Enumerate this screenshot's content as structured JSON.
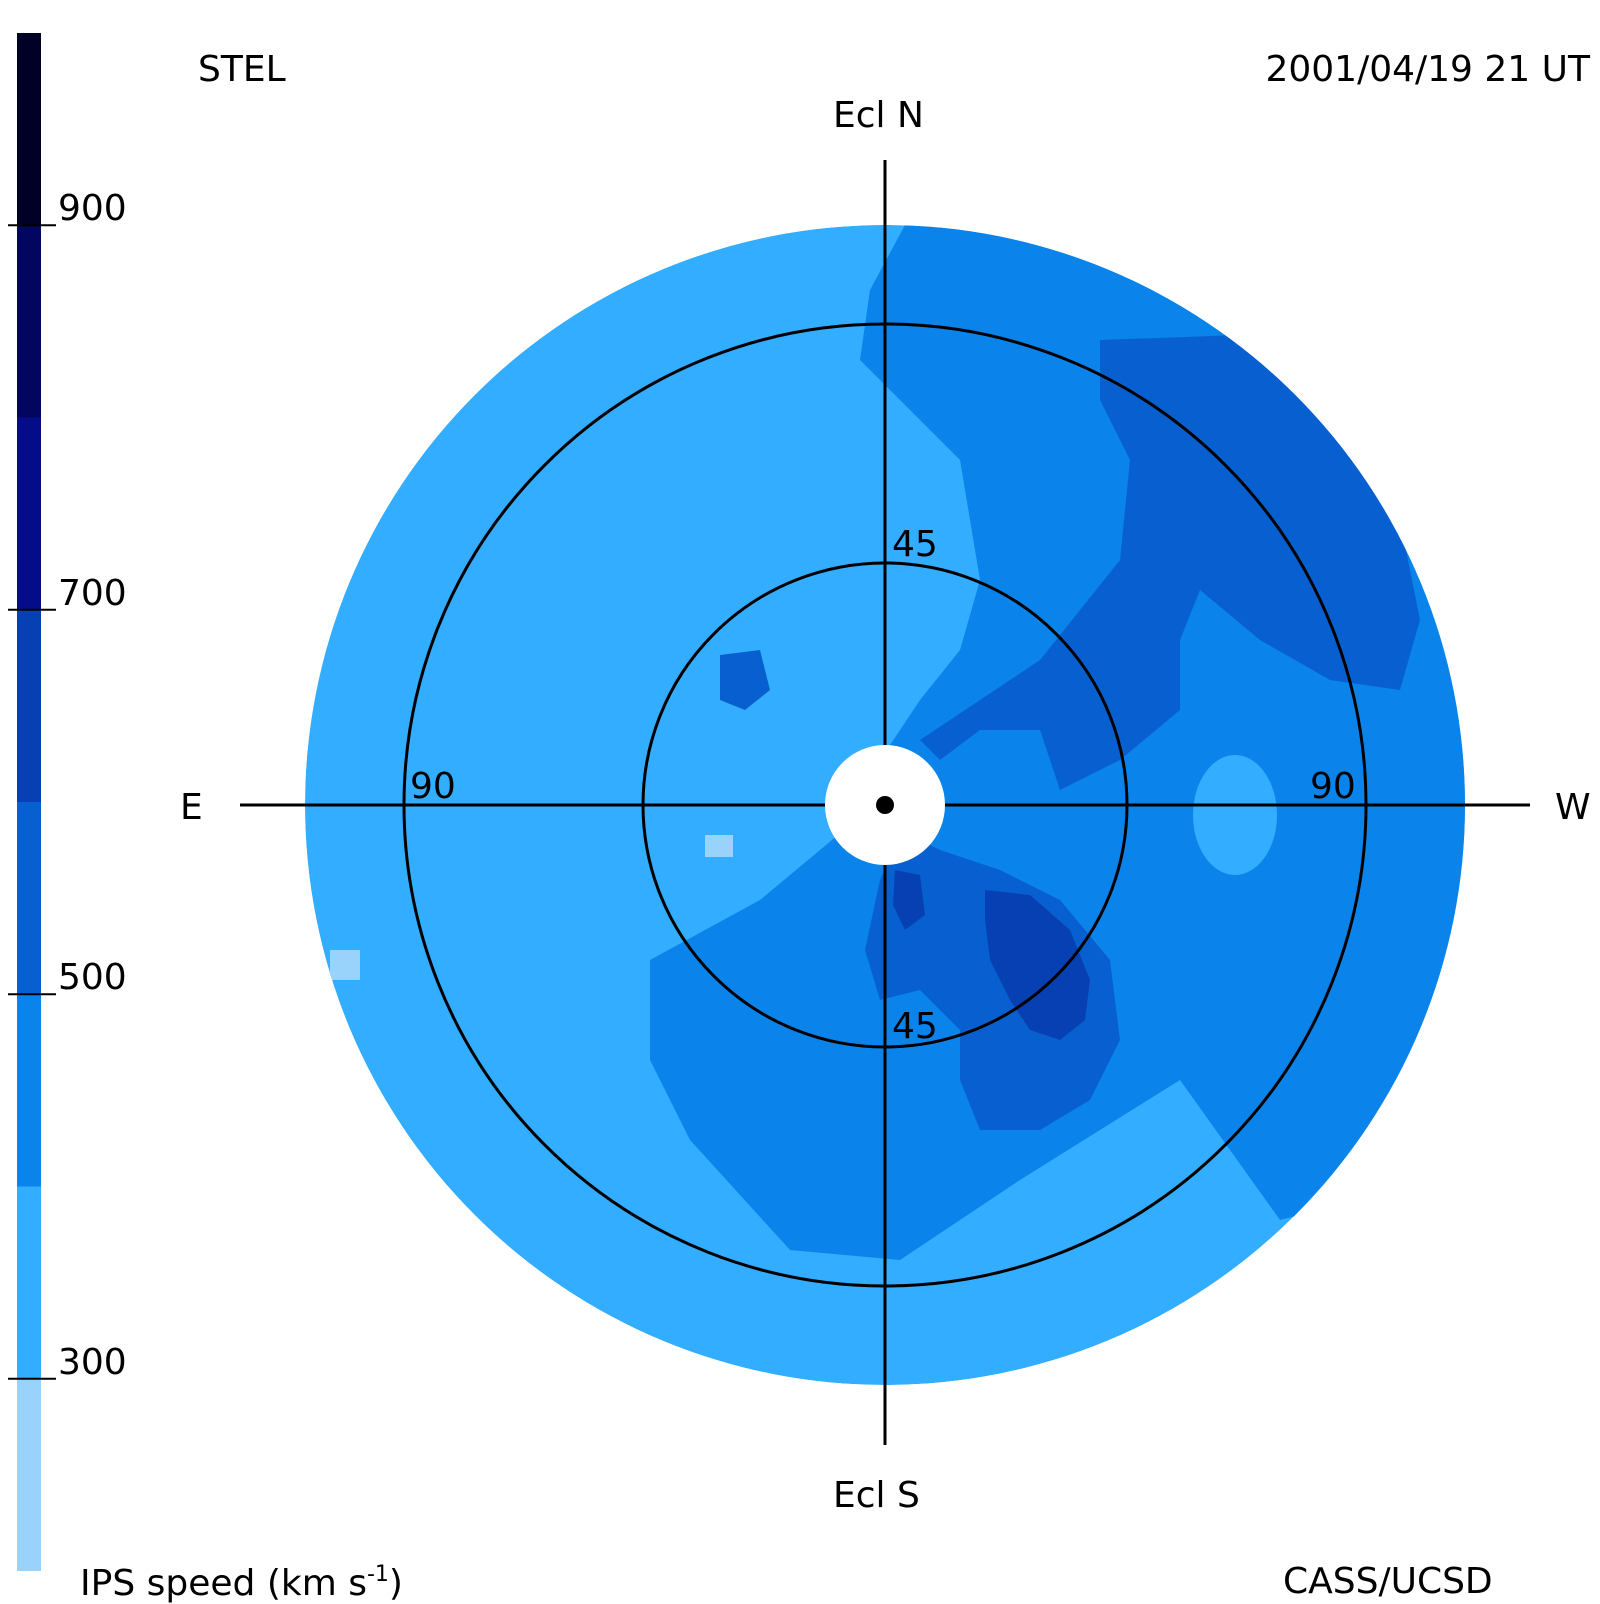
{
  "header": {
    "source": "STEL",
    "timestamp": "2001/04/19 21 UT"
  },
  "footer": {
    "credit": "CASS/UCSD"
  },
  "colors": {
    "background": "#ffffff",
    "axes": "#000000"
  },
  "chart_data": {
    "type": "heatmap",
    "title": "",
    "projection": "polar sky map (elongation from Sun)",
    "direction_labels": {
      "north": "Ecl N",
      "south": "Ecl S",
      "east": "E",
      "west": "W"
    },
    "elongation_rings_deg": [
      {
        "value": 45,
        "labels": [
          "45",
          "45"
        ]
      },
      {
        "value": 90,
        "labels": [
          "90",
          "90"
        ]
      }
    ],
    "colorbar": {
      "label_main": "IPS speed (km s",
      "label_sup": "-1",
      "label_end": ")",
      "range": [
        200,
        1000
      ],
      "ticks": [
        {
          "value": 300,
          "label": "300"
        },
        {
          "value": 500,
          "label": "500"
        },
        {
          "value": 700,
          "label": "700"
        },
        {
          "value": 900,
          "label": "900"
        }
      ],
      "bins": [
        {
          "from": 200,
          "to": 300,
          "color": "#99d3fb"
        },
        {
          "from": 300,
          "to": 400,
          "color": "#33adff"
        },
        {
          "from": 400,
          "to": 500,
          "color": "#0a84ea"
        },
        {
          "from": 500,
          "to": 600,
          "color": "#0860d0"
        },
        {
          "from": 600,
          "to": 700,
          "color": "#0640b2"
        },
        {
          "from": 700,
          "to": 800,
          "color": "#040c88"
        },
        {
          "from": 800,
          "to": 900,
          "color": "#03065e"
        },
        {
          "from": 900,
          "to": 1000,
          "color": "#010128"
        }
      ]
    },
    "speed_regions": [
      {
        "region": "outer sky background",
        "speed_range": [
          300,
          400
        ]
      },
      {
        "region": "north-west and south sectors",
        "speed_range": [
          400,
          500
        ]
      },
      {
        "region": "north-west band and south-west lobe",
        "speed_range": [
          500,
          600
        ]
      },
      {
        "region": "south-west of Sun, near 45 deg",
        "speed_range": [
          600,
          700
        ]
      },
      {
        "region": "small isolated patches",
        "speed_range": [
          200,
          300
        ]
      }
    ]
  }
}
